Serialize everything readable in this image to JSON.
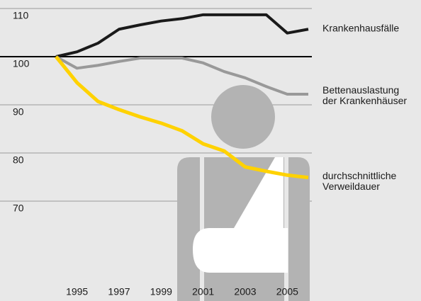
{
  "chart_data": {
    "type": "line",
    "x": [
      1994,
      1995,
      1996,
      1997,
      1998,
      1999,
      2000,
      2001,
      2002,
      2003,
      2004,
      2005,
      2006
    ],
    "series": [
      {
        "name": "Krankenhausfälle",
        "color": "#1a1a1a",
        "values": [
          100,
          101,
          102.8,
          105.7,
          106.6,
          107.4,
          107.9,
          108.7,
          108.7,
          108.7,
          108.7,
          104.9,
          105.7
        ]
      },
      {
        "name": "Bettenauslastung der Krankenhäuser",
        "color": "#999999",
        "values": [
          100,
          97.6,
          98.2,
          99,
          99.7,
          99.7,
          99.7,
          98.7,
          96.9,
          95.6,
          93.8,
          92.2,
          92.2
        ]
      },
      {
        "name": "durchschnittliche Verweildauer",
        "color": "#ffd200",
        "values": [
          100,
          94.6,
          90.7,
          89,
          87.5,
          86.2,
          84.6,
          81.9,
          80.4,
          77.1,
          76.2,
          75.4,
          74.9
        ]
      }
    ],
    "xlim": [
      1994,
      2006
    ],
    "xticks": [
      1995,
      1997,
      1999,
      2001,
      2003,
      2005
    ],
    "ylim": [
      60,
      110
    ],
    "yticks": [
      70,
      80,
      90,
      100,
      110
    ],
    "reference_line": 100,
    "grid": true
  }
}
